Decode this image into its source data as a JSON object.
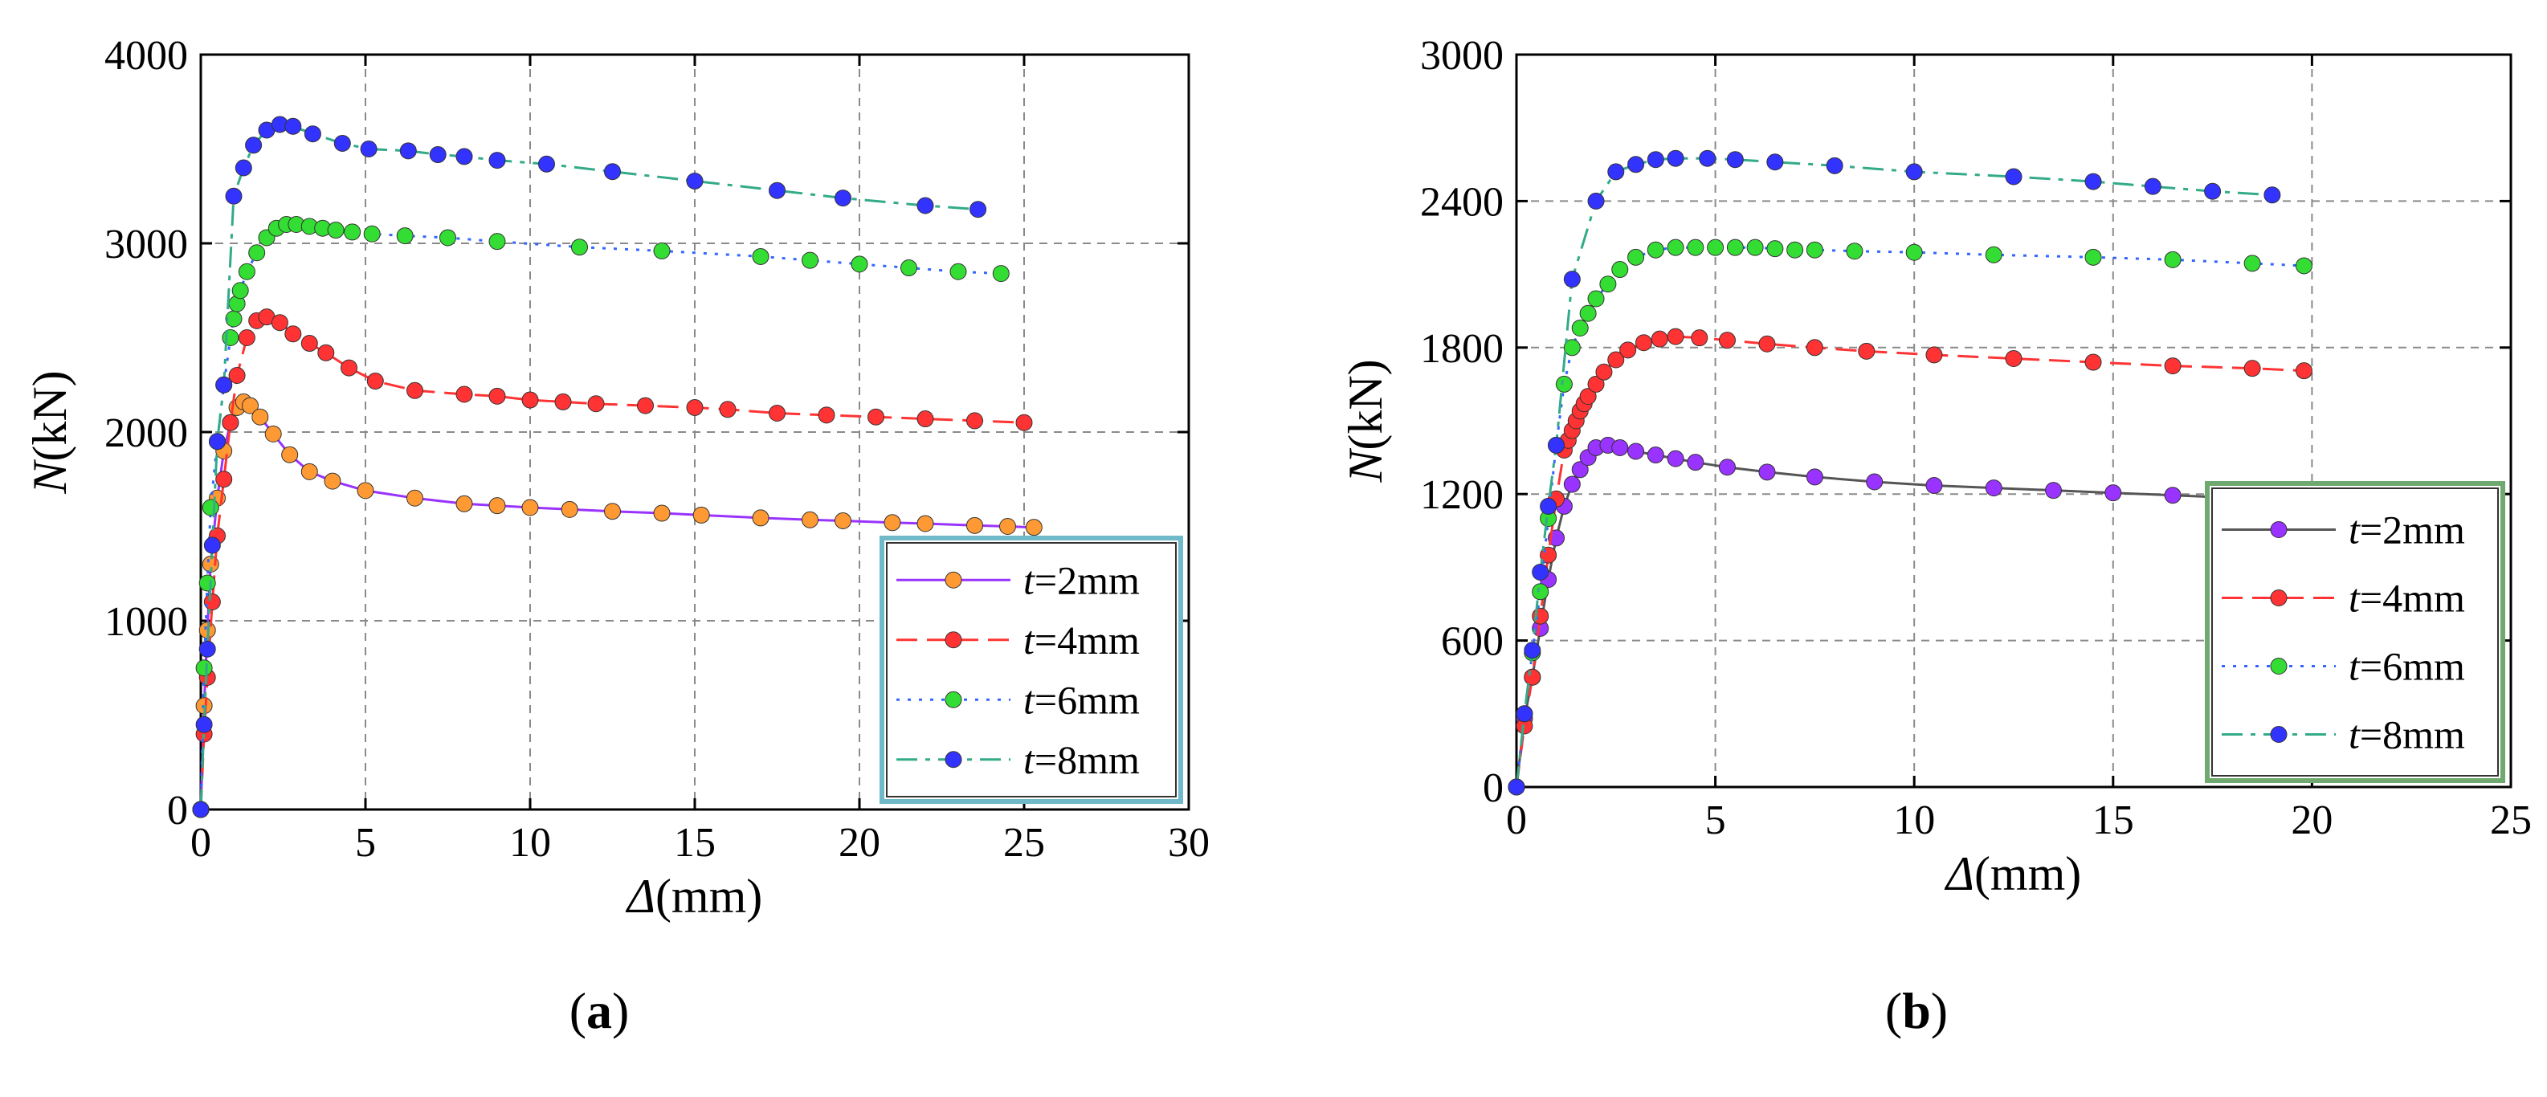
{
  "chart_data": [
    {
      "type": "line",
      "panel_label": "a",
      "xlabel": "Δ(mm)",
      "ylabel": "N(kN)",
      "xlim": [
        0,
        30
      ],
      "ylim": [
        0,
        4000
      ],
      "xticks": [
        0,
        5,
        10,
        15,
        20,
        25,
        30
      ],
      "yticks": [
        0,
        1000,
        2000,
        3000,
        4000
      ],
      "grid": true,
      "legend_position": "bottom-right",
      "series": [
        {
          "name": "t=2mm",
          "color": "#9933ff",
          "marker_color": "#ff9933",
          "dash": "solid",
          "x": [
            0,
            0.1,
            0.2,
            0.3,
            0.5,
            0.7,
            0.9,
            1.1,
            1.3,
            1.5,
            1.8,
            2.2,
            2.7,
            3.3,
            4,
            5,
            6.5,
            8,
            9,
            10,
            11.2,
            12.5,
            14,
            15.2,
            17,
            18.5,
            19.5,
            21,
            22,
            23.5,
            24.5,
            25.3
          ],
          "y": [
            0,
            550,
            950,
            1300,
            1650,
            1900,
            2050,
            2130,
            2160,
            2140,
            2080,
            1990,
            1880,
            1790,
            1740,
            1690,
            1650,
            1620,
            1610,
            1600,
            1590,
            1580,
            1570,
            1560,
            1545,
            1535,
            1530,
            1520,
            1515,
            1505,
            1500,
            1495
          ]
        },
        {
          "name": "t=4mm",
          "color": "#ff3333",
          "marker_color": "#ff3333",
          "dash": "long-dash",
          "x": [
            0,
            0.1,
            0.2,
            0.35,
            0.5,
            0.7,
            0.9,
            1.1,
            1.4,
            1.7,
            2,
            2.4,
            2.8,
            3.3,
            3.8,
            4.5,
            5.3,
            6.5,
            8,
            9,
            10,
            11,
            12,
            13.5,
            15,
            16,
            17.5,
            19,
            20.5,
            22,
            23.5,
            25
          ],
          "y": [
            0,
            400,
            700,
            1100,
            1450,
            1750,
            2050,
            2300,
            2500,
            2590,
            2610,
            2580,
            2520,
            2470,
            2420,
            2340,
            2270,
            2220,
            2200,
            2190,
            2170,
            2160,
            2150,
            2140,
            2130,
            2120,
            2100,
            2090,
            2080,
            2070,
            2060,
            2050
          ]
        },
        {
          "name": "t=6mm",
          "color": "#3366ff",
          "marker_color": "#33dd33",
          "dash": "dotted",
          "x": [
            0,
            0.1,
            0.2,
            0.3,
            0.5,
            0.7,
            0.9,
            1.0,
            1.1,
            1.2,
            1.4,
            1.7,
            2.0,
            2.3,
            2.6,
            2.9,
            3.3,
            3.7,
            4.1,
            4.6,
            5.2,
            6.2,
            7.5,
            9,
            11.5,
            14,
            17,
            18.5,
            20,
            21.5,
            23,
            24.3
          ],
          "y": [
            0,
            750,
            1200,
            1600,
            1950,
            2250,
            2500,
            2600,
            2680,
            2750,
            2850,
            2950,
            3030,
            3080,
            3100,
            3100,
            3090,
            3080,
            3070,
            3060,
            3050,
            3040,
            3030,
            3010,
            2980,
            2960,
            2930,
            2910,
            2890,
            2870,
            2850,
            2840
          ]
        },
        {
          "name": "t=8mm",
          "color": "#33aa88",
          "marker_color": "#3333ff",
          "dash": "dash-dot",
          "x": [
            0,
            0.1,
            0.2,
            0.35,
            0.5,
            0.7,
            1.0,
            1.3,
            1.6,
            2.0,
            2.4,
            2.8,
            3.4,
            4.3,
            5.1,
            6.3,
            7.2,
            8,
            9,
            10.5,
            12.5,
            15,
            17.5,
            19.5,
            22,
            23.6
          ],
          "y": [
            0,
            450,
            850,
            1400,
            1950,
            2250,
            3250,
            3400,
            3520,
            3600,
            3630,
            3620,
            3580,
            3530,
            3500,
            3490,
            3470,
            3460,
            3440,
            3420,
            3380,
            3330,
            3280,
            3240,
            3200,
            3180
          ]
        }
      ]
    },
    {
      "type": "line",
      "panel_label": "b",
      "xlabel": "Δ(mm)",
      "ylabel": "N(kN)",
      "xlim": [
        0,
        25
      ],
      "ylim": [
        0,
        3000
      ],
      "xticks": [
        0,
        5,
        10,
        15,
        20,
        25
      ],
      "yticks": [
        0,
        600,
        1200,
        1800,
        2400,
        3000
      ],
      "grid": true,
      "legend_position": "bottom-right",
      "series": [
        {
          "name": "t=2mm",
          "color": "#555555",
          "marker_color": "#9933ff",
          "dash": "solid",
          "x": [
            0,
            0.2,
            0.4,
            0.6,
            0.8,
            1.0,
            1.2,
            1.4,
            1.6,
            1.8,
            2.0,
            2.3,
            2.6,
            3,
            3.5,
            4,
            4.5,
            5.3,
            6.3,
            7.5,
            9,
            10.5,
            12,
            13.5,
            15,
            16.5,
            18,
            19.5,
            20.5
          ],
          "y": [
            0,
            280,
            450,
            650,
            850,
            1020,
            1150,
            1240,
            1300,
            1350,
            1390,
            1400,
            1390,
            1375,
            1360,
            1345,
            1330,
            1310,
            1290,
            1270,
            1250,
            1235,
            1225,
            1215,
            1205,
            1195,
            1185,
            1180,
            1175
          ]
        },
        {
          "name": "t=4mm",
          "color": "#ff3333",
          "marker_color": "#ff3333",
          "dash": "long-dash",
          "x": [
            0,
            0.2,
            0.4,
            0.6,
            0.8,
            1.0,
            1.2,
            1.3,
            1.4,
            1.5,
            1.6,
            1.7,
            1.8,
            2.0,
            2.2,
            2.5,
            2.8,
            3.2,
            3.6,
            4,
            4.6,
            5.3,
            6.3,
            7.5,
            8.8,
            10.5,
            12.5,
            14.5,
            16.5,
            18.5,
            19.8
          ],
          "y": [
            0,
            250,
            450,
            700,
            950,
            1180,
            1380,
            1420,
            1460,
            1500,
            1540,
            1570,
            1600,
            1650,
            1700,
            1750,
            1790,
            1820,
            1835,
            1845,
            1840,
            1830,
            1815,
            1800,
            1785,
            1770,
            1755,
            1740,
            1725,
            1715,
            1705
          ]
        },
        {
          "name": "t=6mm",
          "color": "#3366ff",
          "marker_color": "#33dd33",
          "dash": "dotted",
          "x": [
            0,
            0.2,
            0.4,
            0.6,
            0.8,
            1.0,
            1.2,
            1.4,
            1.6,
            1.8,
            2.0,
            2.3,
            2.6,
            3.0,
            3.5,
            4.0,
            4.5,
            5.0,
            5.5,
            6.0,
            6.5,
            7.0,
            7.5,
            8.5,
            10,
            12,
            14.5,
            16.5,
            18.5,
            19.8
          ],
          "y": [
            0,
            300,
            550,
            800,
            1100,
            1400,
            1650,
            1800,
            1880,
            1940,
            2000,
            2060,
            2120,
            2170,
            2200,
            2210,
            2210,
            2210,
            2210,
            2210,
            2205,
            2200,
            2200,
            2195,
            2190,
            2180,
            2170,
            2160,
            2145,
            2135
          ]
        },
        {
          "name": "t=8mm",
          "color": "#33aa88",
          "marker_color": "#3333ff",
          "dash": "dash-dot",
          "x": [
            0,
            0.2,
            0.4,
            0.6,
            0.8,
            1.0,
            1.4,
            2.0,
            2.5,
            3.0,
            3.5,
            4,
            4.8,
            5.5,
            6.5,
            8,
            10,
            12.5,
            14.5,
            16,
            17.5,
            19
          ],
          "y": [
            0,
            300,
            560,
            880,
            1150,
            1400,
            2080,
            2400,
            2520,
            2550,
            2570,
            2575,
            2575,
            2570,
            2560,
            2545,
            2520,
            2500,
            2480,
            2460,
            2440,
            2425
          ]
        }
      ]
    }
  ]
}
